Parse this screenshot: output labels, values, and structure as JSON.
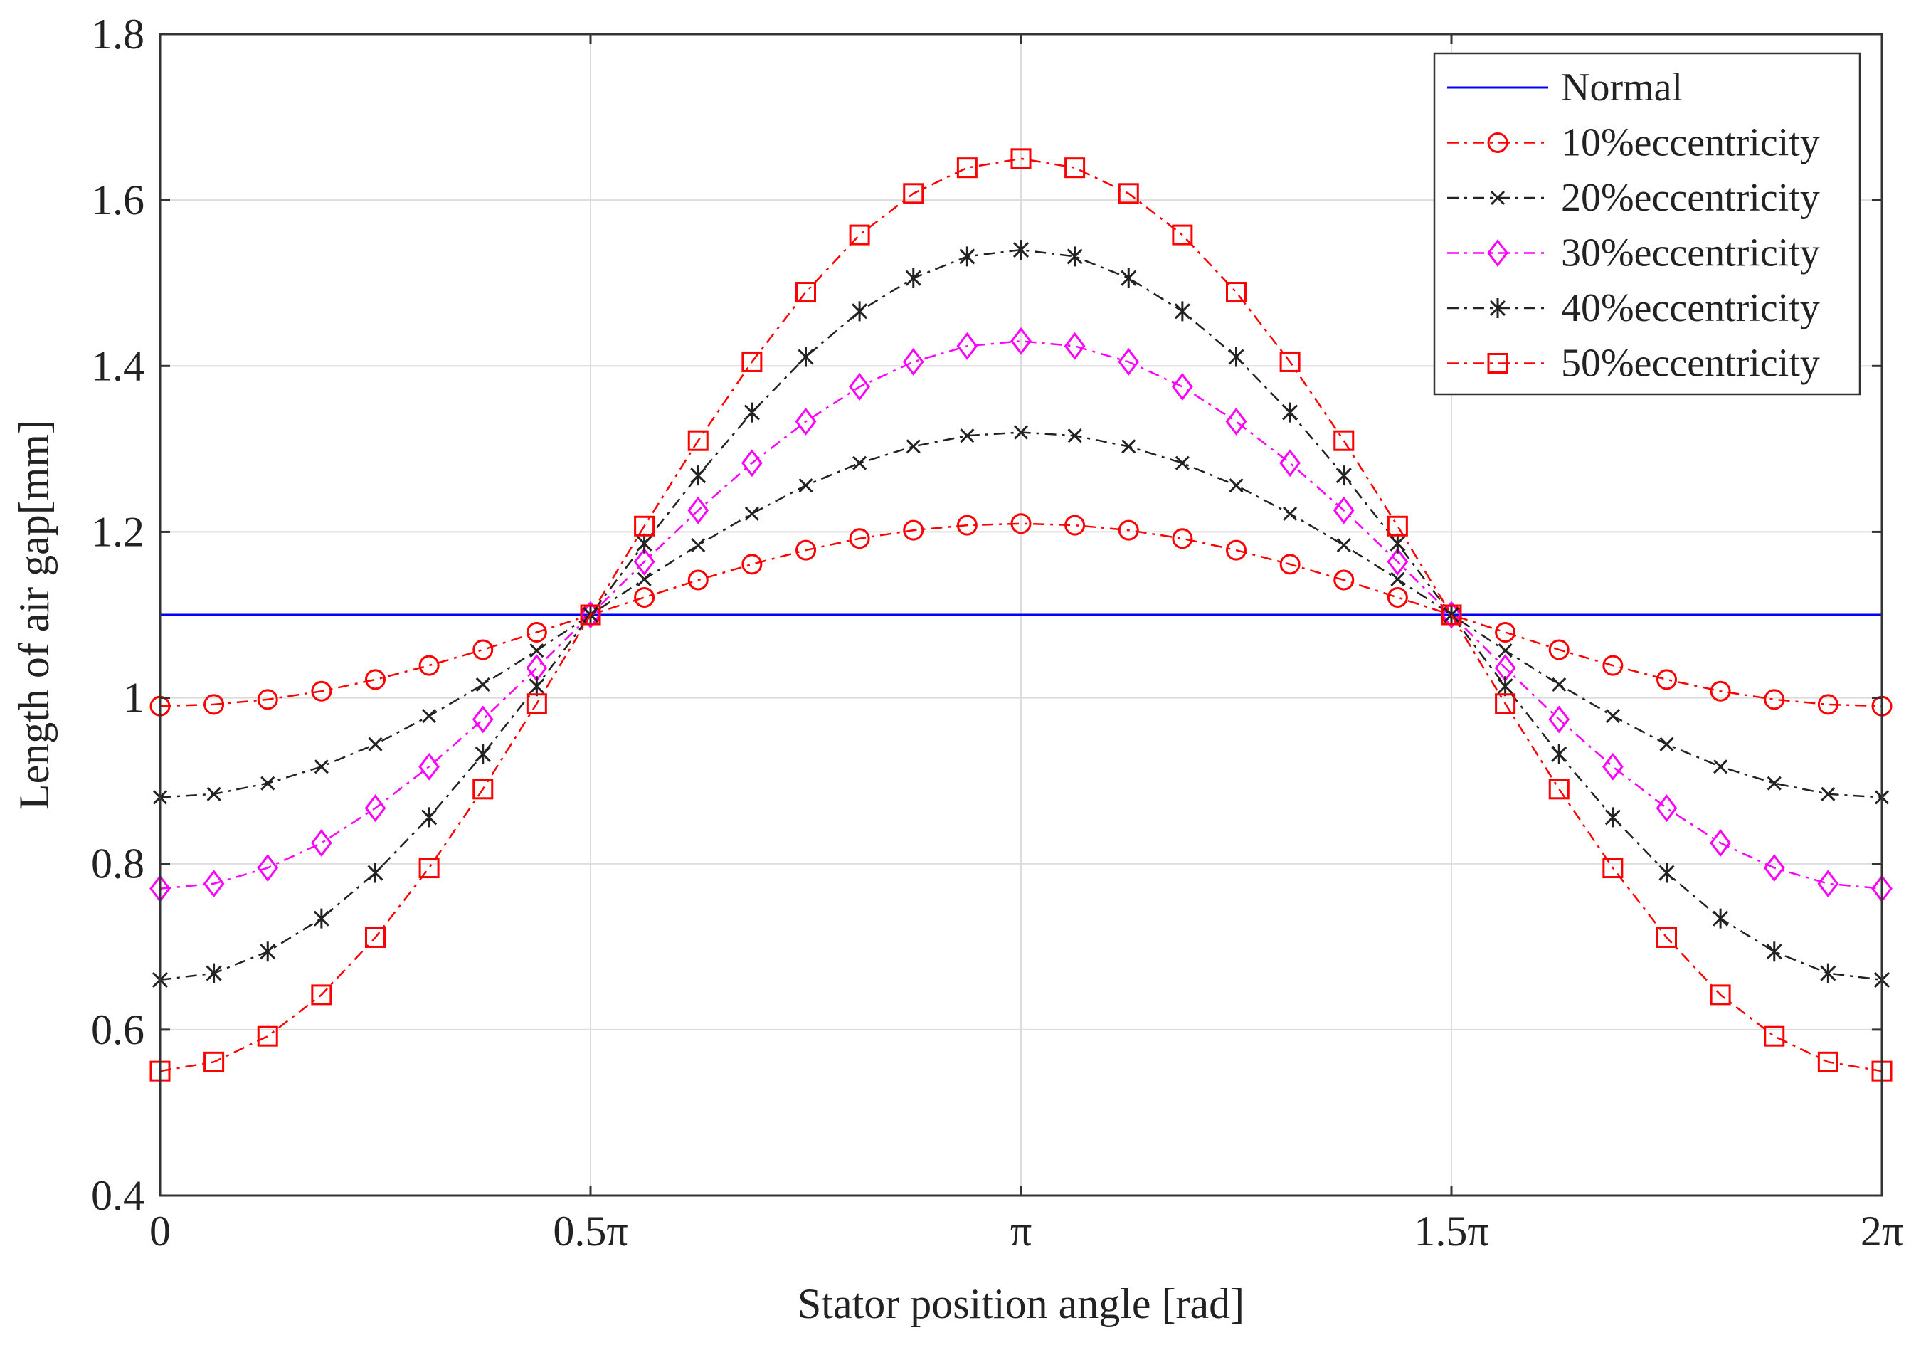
{
  "chart_data": {
    "type": "line",
    "title": "",
    "xlabel": "Stator position angle [rad]",
    "ylabel": "Length of air gap[mm]",
    "xlim": [
      0,
      6.283185307
    ],
    "ylim": [
      0.4,
      1.8
    ],
    "grid": true,
    "legend_position": "top-right",
    "x_ticks": [
      {
        "value": 0,
        "label": "0"
      },
      {
        "value": 1.570796327,
        "label": "0.5π"
      },
      {
        "value": 3.141592654,
        "label": "π"
      },
      {
        "value": 4.71238898,
        "label": "1.5π"
      },
      {
        "value": 6.283185307,
        "label": "2π"
      }
    ],
    "y_ticks": [
      {
        "value": 0.4,
        "label": "0.4"
      },
      {
        "value": 0.6,
        "label": "0.6"
      },
      {
        "value": 0.8,
        "label": "0.8"
      },
      {
        "value": 1.0,
        "label": "1"
      },
      {
        "value": 1.2,
        "label": "1.2"
      },
      {
        "value": 1.4,
        "label": "1.4"
      },
      {
        "value": 1.6,
        "label": "1.6"
      },
      {
        "value": 1.8,
        "label": "1.8"
      }
    ],
    "x": [
      0,
      0.1963,
      0.3927,
      0.589,
      0.7854,
      0.9817,
      1.1781,
      1.3744,
      1.5708,
      1.7671,
      1.9635,
      2.1598,
      2.3562,
      2.5525,
      2.7489,
      2.9452,
      3.1416,
      3.3379,
      3.5343,
      3.7306,
      3.927,
      4.1233,
      4.3197,
      4.516,
      4.7124,
      4.9087,
      5.1051,
      5.3014,
      5.4978,
      5.6941,
      5.8905,
      6.0868,
      6.2832
    ],
    "series": [
      {
        "name": "Normal",
        "color": "#0000ff",
        "dash": "solid",
        "marker": "none",
        "values": [
          1.1,
          1.1,
          1.1,
          1.1,
          1.1,
          1.1,
          1.1,
          1.1,
          1.1,
          1.1,
          1.1,
          1.1,
          1.1,
          1.1,
          1.1,
          1.1,
          1.1,
          1.1,
          1.1,
          1.1,
          1.1,
          1.1,
          1.1,
          1.1,
          1.1,
          1.1,
          1.1,
          1.1,
          1.1,
          1.1,
          1.1,
          1.1,
          1.1
        ]
      },
      {
        "name": "10%eccentricity",
        "color": "#ff0000",
        "dash": "dashdot",
        "marker": "circle",
        "values": [
          0.99,
          0.992,
          0.998,
          1.008,
          1.022,
          1.039,
          1.058,
          1.079,
          1.1,
          1.121,
          1.142,
          1.161,
          1.178,
          1.192,
          1.202,
          1.208,
          1.21,
          1.208,
          1.202,
          1.192,
          1.178,
          1.161,
          1.142,
          1.121,
          1.1,
          1.079,
          1.058,
          1.039,
          1.022,
          1.008,
          0.998,
          0.992,
          0.99
        ]
      },
      {
        "name": "20%eccentricity",
        "color": "#222222",
        "dash": "dashdot",
        "marker": "x",
        "values": [
          0.88,
          0.884,
          0.897,
          0.917,
          0.944,
          0.978,
          1.016,
          1.057,
          1.1,
          1.143,
          1.184,
          1.222,
          1.256,
          1.283,
          1.303,
          1.316,
          1.32,
          1.316,
          1.303,
          1.283,
          1.256,
          1.222,
          1.184,
          1.143,
          1.1,
          1.057,
          1.016,
          0.978,
          0.944,
          0.917,
          0.897,
          0.884,
          0.88
        ]
      },
      {
        "name": "30%eccentricity",
        "color": "#ff00ff",
        "dash": "dashdot",
        "marker": "diamond",
        "values": [
          0.77,
          0.776,
          0.795,
          0.825,
          0.867,
          0.917,
          0.974,
          1.036,
          1.1,
          1.164,
          1.226,
          1.283,
          1.333,
          1.375,
          1.405,
          1.424,
          1.43,
          1.424,
          1.405,
          1.375,
          1.333,
          1.283,
          1.226,
          1.164,
          1.1,
          1.036,
          0.974,
          0.917,
          0.867,
          0.825,
          0.795,
          0.776,
          0.77
        ]
      },
      {
        "name": "40%eccentricity",
        "color": "#222222",
        "dash": "dashdot",
        "marker": "star",
        "values": [
          0.66,
          0.668,
          0.694,
          0.734,
          0.789,
          0.856,
          0.932,
          1.014,
          1.1,
          1.186,
          1.268,
          1.344,
          1.411,
          1.466,
          1.506,
          1.532,
          1.54,
          1.532,
          1.506,
          1.466,
          1.411,
          1.344,
          1.268,
          1.186,
          1.1,
          1.014,
          0.932,
          0.856,
          0.789,
          0.734,
          0.694,
          0.668,
          0.66
        ]
      },
      {
        "name": "50%eccentricity",
        "color": "#ff0000",
        "dash": "dashdot",
        "marker": "square",
        "values": [
          0.55,
          0.561,
          0.592,
          0.642,
          0.711,
          0.795,
          0.89,
          0.993,
          1.1,
          1.207,
          1.31,
          1.405,
          1.489,
          1.558,
          1.608,
          1.639,
          1.65,
          1.639,
          1.608,
          1.558,
          1.489,
          1.405,
          1.31,
          1.207,
          1.1,
          0.993,
          0.89,
          0.795,
          0.711,
          0.642,
          0.592,
          0.561,
          0.55
        ]
      }
    ]
  }
}
